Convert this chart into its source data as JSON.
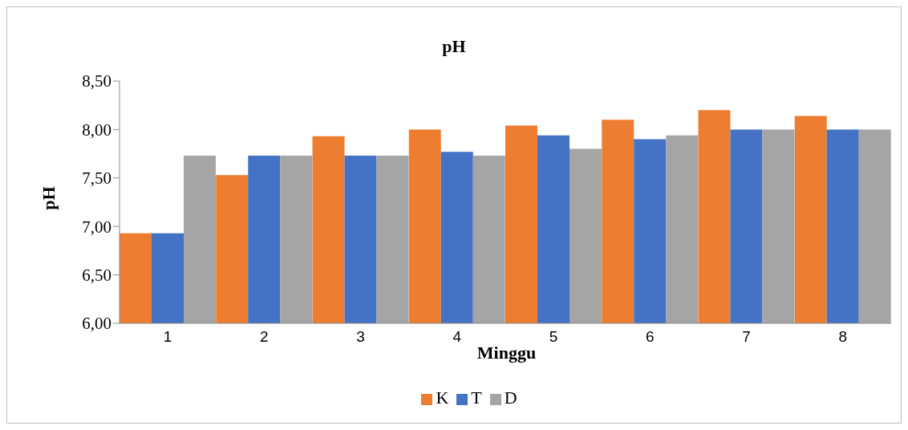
{
  "chart_data": {
    "type": "bar",
    "title": "pH",
    "xlabel": "Minggu",
    "ylabel": "pH",
    "categories": [
      "1",
      "2",
      "3",
      "4",
      "5",
      "6",
      "7",
      "8"
    ],
    "series": [
      {
        "name": "K",
        "color": "#ed7d31",
        "values": [
          6.93,
          7.53,
          7.93,
          8.0,
          8.04,
          8.1,
          8.2,
          8.14
        ]
      },
      {
        "name": "T",
        "color": "#4472c4",
        "values": [
          6.93,
          7.73,
          7.73,
          7.77,
          7.94,
          7.9,
          8.0,
          8.0
        ]
      },
      {
        "name": "D",
        "color": "#a5a5a5",
        "values": [
          7.73,
          7.73,
          7.73,
          7.73,
          7.8,
          7.94,
          8.0,
          8.0
        ]
      }
    ],
    "ylim": [
      6,
      8.5
    ],
    "yticks": [
      {
        "value": 6,
        "label": "6,00"
      },
      {
        "value": 6.5,
        "label": "6,50"
      },
      {
        "value": 7,
        "label": "7,00"
      },
      {
        "value": 7.5,
        "label": "7,50"
      },
      {
        "value": 8,
        "label": "8,00"
      },
      {
        "value": 8.5,
        "label": "8,50"
      }
    ],
    "grid": false,
    "legend": "bottom"
  }
}
